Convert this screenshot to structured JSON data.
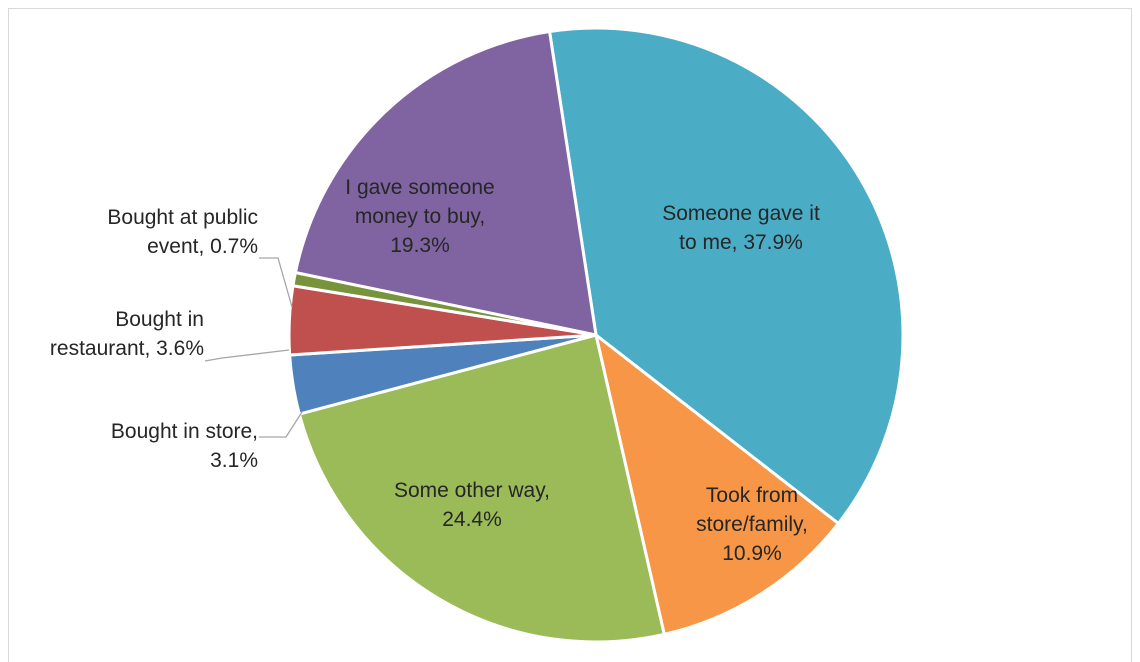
{
  "chart_data": {
    "type": "pie",
    "title": "",
    "legend": "none",
    "unit": "%",
    "slices": [
      {
        "label": "Someone gave it to me",
        "value": 37.9,
        "value_text": "37.9%",
        "color": "#4bacc6",
        "label_lines": [
          "Someone gave it",
          "to me, 37.9%"
        ]
      },
      {
        "label": "Took from store/family",
        "value": 10.9,
        "value_text": "10.9%",
        "color": "#f79646",
        "label_lines": [
          "Took from",
          "store/family,",
          "10.9%"
        ]
      },
      {
        "label": "Some other way",
        "value": 24.4,
        "value_text": "24.4%",
        "color": "#9bbb59",
        "label_lines": [
          "Some other way,",
          "24.4%"
        ]
      },
      {
        "label": "Bought in store",
        "value": 3.1,
        "value_text": "3.1%",
        "color": "#4f81bd",
        "label_lines": [
          "Bought in store,",
          "3.1%"
        ]
      },
      {
        "label": "Bought in restaurant",
        "value": 3.6,
        "value_text": "3.6%",
        "color": "#c0504d",
        "label_lines": [
          "Bought in",
          "restaurant, 3.6%"
        ]
      },
      {
        "label": "Bought at public event",
        "value": 0.7,
        "value_text": "0.7%",
        "color": "#77933c",
        "label_lines": [
          "Bought at public",
          "event, 0.7%"
        ]
      },
      {
        "label": "I gave someone money to buy",
        "value": 19.3,
        "value_text": "19.3%",
        "color": "#8064a2",
        "label_lines": [
          "I gave someone",
          "money to buy,",
          "19.3%"
        ]
      }
    ]
  }
}
